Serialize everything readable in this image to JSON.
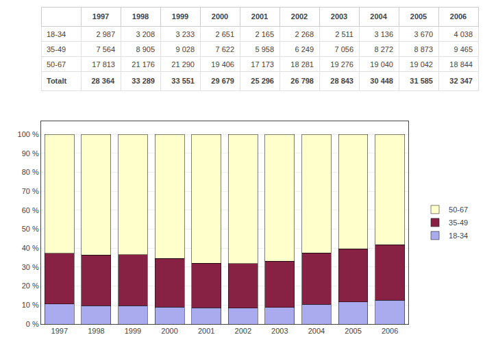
{
  "chart_data": [
    {
      "type": "table",
      "categories": [
        "1997",
        "1998",
        "1999",
        "2000",
        "2001",
        "2002",
        "2003",
        "2004",
        "2005",
        "2006"
      ],
      "series": [
        {
          "name": "18-34",
          "values": [
            2987,
            3208,
            3233,
            2651,
            2165,
            2268,
            2511,
            3136,
            3670,
            4038
          ],
          "value_labels": [
            "2 987",
            "3 208",
            "3 233",
            "2 651",
            "2 165",
            "2 268",
            "2 511",
            "3 136",
            "3 670",
            "4 038"
          ]
        },
        {
          "name": "35-49",
          "values": [
            7564,
            8905,
            9028,
            7622,
            5958,
            6249,
            7056,
            8272,
            8873,
            9465
          ],
          "value_labels": [
            "7 564",
            "8 905",
            "9 028",
            "7 622",
            "5 958",
            "6 249",
            "7 056",
            "8 272",
            "8 873",
            "9 465"
          ]
        },
        {
          "name": "50-67",
          "values": [
            17813,
            21176,
            21290,
            19406,
            17173,
            18281,
            19276,
            19040,
            19042,
            18844
          ],
          "value_labels": [
            "17 813",
            "21 176",
            "21 290",
            "19 406",
            "17 173",
            "18 281",
            "19 276",
            "19 040",
            "19 042",
            "18 844"
          ]
        },
        {
          "name": "Totalt",
          "values": [
            28364,
            33289,
            33551,
            29679,
            25296,
            26798,
            28843,
            30448,
            31585,
            32347
          ],
          "value_labels": [
            "28 364",
            "33 289",
            "33 551",
            "29 679",
            "25 296",
            "26 798",
            "28 843",
            "30 448",
            "31 585",
            "32 347"
          ]
        }
      ]
    },
    {
      "type": "bar",
      "stacked": true,
      "categories": [
        "1997",
        "1998",
        "1999",
        "2000",
        "2001",
        "2002",
        "2003",
        "2004",
        "2005",
        "2006"
      ],
      "series": [
        {
          "name": "18-34",
          "color": "#aaaaee",
          "values": [
            10.531,
            9.637,
            9.636,
            8.932,
            8.559,
            8.463,
            8.706,
            10.3,
            11.619,
            12.483
          ]
        },
        {
          "name": "35-49",
          "color": "#882244",
          "values": [
            26.668,
            26.751,
            26.908,
            25.681,
            23.553,
            23.319,
            24.463,
            27.168,
            28.092,
            29.261
          ]
        },
        {
          "name": "50-67",
          "color": "#ffffcc",
          "values": [
            62.801,
            63.613,
            63.456,
            65.386,
            67.888,
            68.218,
            66.831,
            62.533,
            60.288,
            58.256
          ]
        }
      ],
      "ylim": [
        0,
        107
      ],
      "yticks": [
        {
          "value": 0,
          "label": "0 %"
        },
        {
          "value": 10,
          "label": "10 %"
        },
        {
          "value": 20,
          "label": "20 %"
        },
        {
          "value": 30,
          "label": "30 %"
        },
        {
          "value": 40,
          "label": "40 %"
        },
        {
          "value": 50,
          "label": "50 %"
        },
        {
          "value": 60,
          "label": "60 %"
        },
        {
          "value": 70,
          "label": "70 %"
        },
        {
          "value": 80,
          "label": "80 %"
        },
        {
          "value": 90,
          "label": "90 %"
        },
        {
          "value": 100,
          "label": "100 %"
        }
      ],
      "grid": true,
      "legend": "right"
    }
  ]
}
